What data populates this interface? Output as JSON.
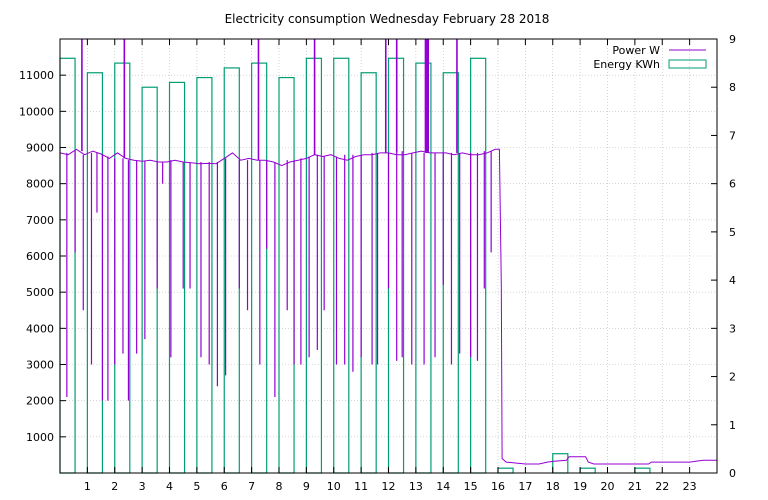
{
  "chart_data": {
    "title": "Electricity consumption Wednesday February 28 2018",
    "grid": true,
    "legend": "top-right",
    "x": {
      "range": [
        0,
        24
      ],
      "ticks": [
        1,
        2,
        3,
        4,
        5,
        6,
        7,
        8,
        9,
        10,
        11,
        12,
        13,
        14,
        15,
        16,
        17,
        18,
        19,
        20,
        21,
        22,
        23
      ]
    },
    "y_left": {
      "range": [
        0,
        12000
      ],
      "ticks": [
        1000,
        2000,
        3000,
        4000,
        5000,
        6000,
        7000,
        8000,
        9000,
        10000,
        11000
      ]
    },
    "y_right": {
      "range": [
        0,
        9
      ],
      "ticks": [
        0,
        1,
        2,
        3,
        4,
        5,
        6,
        7,
        8,
        9
      ]
    },
    "series": [
      {
        "name": "Power W",
        "type": "line",
        "axis": "left",
        "color": "#9400d3",
        "base_points": [
          [
            0.0,
            8850
          ],
          [
            0.3,
            8800
          ],
          [
            0.6,
            8950
          ],
          [
            0.9,
            8800
          ],
          [
            1.2,
            8900
          ],
          [
            1.5,
            8820
          ],
          [
            1.8,
            8700
          ],
          [
            2.1,
            8850
          ],
          [
            2.4,
            8700
          ],
          [
            2.7,
            8650
          ],
          [
            3.0,
            8620
          ],
          [
            3.3,
            8650
          ],
          [
            3.6,
            8600
          ],
          [
            3.9,
            8600
          ],
          [
            4.2,
            8650
          ],
          [
            4.5,
            8600
          ],
          [
            4.8,
            8580
          ],
          [
            5.1,
            8550
          ],
          [
            5.4,
            8560
          ],
          [
            5.7,
            8550
          ],
          [
            6.0,
            8700
          ],
          [
            6.3,
            8850
          ],
          [
            6.6,
            8650
          ],
          [
            6.9,
            8700
          ],
          [
            7.2,
            8650
          ],
          [
            7.5,
            8650
          ],
          [
            7.8,
            8600
          ],
          [
            8.1,
            8500
          ],
          [
            8.4,
            8600
          ],
          [
            8.7,
            8650
          ],
          [
            9.0,
            8700
          ],
          [
            9.3,
            8800
          ],
          [
            9.6,
            8750
          ],
          [
            9.9,
            8800
          ],
          [
            10.2,
            8700
          ],
          [
            10.5,
            8650
          ],
          [
            10.8,
            8750
          ],
          [
            11.1,
            8800
          ],
          [
            11.4,
            8800
          ],
          [
            11.7,
            8850
          ],
          [
            12.0,
            8850
          ],
          [
            12.3,
            8800
          ],
          [
            12.6,
            8800
          ],
          [
            12.9,
            8850
          ],
          [
            13.2,
            8900
          ],
          [
            13.5,
            8850
          ],
          [
            13.8,
            8850
          ],
          [
            14.1,
            8850
          ],
          [
            14.4,
            8800
          ],
          [
            14.7,
            8850
          ],
          [
            15.0,
            8800
          ],
          [
            15.3,
            8800
          ],
          [
            15.6,
            8850
          ],
          [
            15.9,
            8950
          ],
          [
            16.05,
            8950
          ],
          [
            16.12,
            5200
          ],
          [
            16.15,
            400
          ],
          [
            16.3,
            300
          ],
          [
            17.0,
            250
          ],
          [
            17.5,
            250
          ],
          [
            17.8,
            300
          ],
          [
            18.0,
            320
          ],
          [
            18.5,
            350
          ],
          [
            18.6,
            450
          ],
          [
            19.2,
            450
          ],
          [
            19.3,
            300
          ],
          [
            19.5,
            250
          ],
          [
            20.0,
            250
          ],
          [
            21.0,
            250
          ],
          [
            21.5,
            250
          ],
          [
            21.6,
            300
          ],
          [
            22.5,
            300
          ],
          [
            23.0,
            300
          ],
          [
            23.5,
            350
          ],
          [
            24.0,
            350
          ]
        ],
        "dips": [
          [
            0.25,
            8850,
            2100
          ],
          [
            0.55,
            8900,
            6100
          ],
          [
            0.85,
            8800,
            4500
          ],
          [
            1.15,
            8850,
            3000
          ],
          [
            1.35,
            8850,
            7200
          ],
          [
            1.55,
            8800,
            2000
          ],
          [
            1.75,
            8750,
            2000
          ],
          [
            2.0,
            8700,
            3000
          ],
          [
            2.3,
            8700,
            3300
          ],
          [
            2.5,
            8650,
            2000
          ],
          [
            2.8,
            8650,
            3300
          ],
          [
            3.1,
            8620,
            3700
          ],
          [
            3.55,
            8600,
            5100
          ],
          [
            3.75,
            8600,
            8000
          ],
          [
            4.05,
            8650,
            3200
          ],
          [
            4.5,
            8600,
            5100
          ],
          [
            4.75,
            8580,
            5100
          ],
          [
            5.15,
            8600,
            3200
          ],
          [
            5.45,
            8600,
            3000
          ],
          [
            5.75,
            8600,
            2400
          ],
          [
            6.05,
            8700,
            2700
          ],
          [
            6.55,
            8650,
            5100
          ],
          [
            6.85,
            8650,
            4500
          ],
          [
            7.3,
            8650,
            3000
          ],
          [
            7.55,
            8650,
            6200
          ],
          [
            7.85,
            8600,
            2100
          ],
          [
            8.3,
            8650,
            4500
          ],
          [
            8.55,
            8650,
            3000
          ],
          [
            8.8,
            8700,
            3000
          ],
          [
            9.1,
            8750,
            3200
          ],
          [
            9.4,
            8800,
            3400
          ],
          [
            9.65,
            8750,
            4500
          ],
          [
            10.1,
            8750,
            3000
          ],
          [
            10.4,
            8800,
            3000
          ],
          [
            10.7,
            8800,
            2800
          ],
          [
            11.0,
            8800,
            3200
          ],
          [
            11.4,
            8850,
            3000
          ],
          [
            11.6,
            8850,
            3000
          ],
          [
            12.0,
            8850,
            5100
          ],
          [
            12.3,
            8850,
            3100
          ],
          [
            12.5,
            8900,
            3200
          ],
          [
            12.85,
            8850,
            3000
          ],
          [
            13.3,
            8850,
            3000
          ],
          [
            13.7,
            8850,
            3200
          ],
          [
            14.0,
            8850,
            5200
          ],
          [
            14.3,
            8850,
            3000
          ],
          [
            14.6,
            8850,
            3300
          ],
          [
            15.0,
            8850,
            3200
          ],
          [
            15.25,
            8850,
            3100
          ],
          [
            15.5,
            8900,
            5100
          ],
          [
            15.75,
            8900,
            6100
          ]
        ],
        "spikes": [
          [
            0.8,
            8900,
            12000
          ],
          [
            2.35,
            8700,
            12000
          ],
          [
            7.25,
            8650,
            12000
          ],
          [
            9.3,
            8800,
            12000
          ],
          [
            11.9,
            8850,
            12000
          ],
          [
            12.3,
            8850,
            12000
          ],
          [
            13.35,
            8850,
            12000
          ],
          [
            13.4,
            8850,
            12000
          ],
          [
            13.45,
            8850,
            12000
          ],
          [
            14.5,
            8850,
            12000
          ]
        ]
      },
      {
        "name": "Energy KWh",
        "type": "bar",
        "axis": "right",
        "color": "#009e73",
        "bar_width_hours": 0.55,
        "values": [
          {
            "x": 0.0,
            "value": 8.6
          },
          {
            "x": 1.0,
            "value": 8.3
          },
          {
            "x": 2.0,
            "value": 8.5
          },
          {
            "x": 3.0,
            "value": 8.0
          },
          {
            "x": 4.0,
            "value": 8.1
          },
          {
            "x": 5.0,
            "value": 8.2
          },
          {
            "x": 6.0,
            "value": 8.4
          },
          {
            "x": 7.0,
            "value": 8.5
          },
          {
            "x": 8.0,
            "value": 8.2
          },
          {
            "x": 9.0,
            "value": 8.6
          },
          {
            "x": 10.0,
            "value": 8.6
          },
          {
            "x": 11.0,
            "value": 8.3
          },
          {
            "x": 12.0,
            "value": 8.6
          },
          {
            "x": 13.0,
            "value": 8.5
          },
          {
            "x": 14.0,
            "value": 8.3
          },
          {
            "x": 15.0,
            "value": 8.6
          },
          {
            "x": 16.0,
            "value": 0.1
          },
          {
            "x": 17.0,
            "value": 0.0
          },
          {
            "x": 18.0,
            "value": 0.4
          },
          {
            "x": 19.0,
            "value": 0.1
          },
          {
            "x": 20.0,
            "value": 0.0
          },
          {
            "x": 21.0,
            "value": 0.1
          },
          {
            "x": 22.0,
            "value": 0.0
          },
          {
            "x": 23.0,
            "value": 0.0
          }
        ]
      }
    ]
  }
}
